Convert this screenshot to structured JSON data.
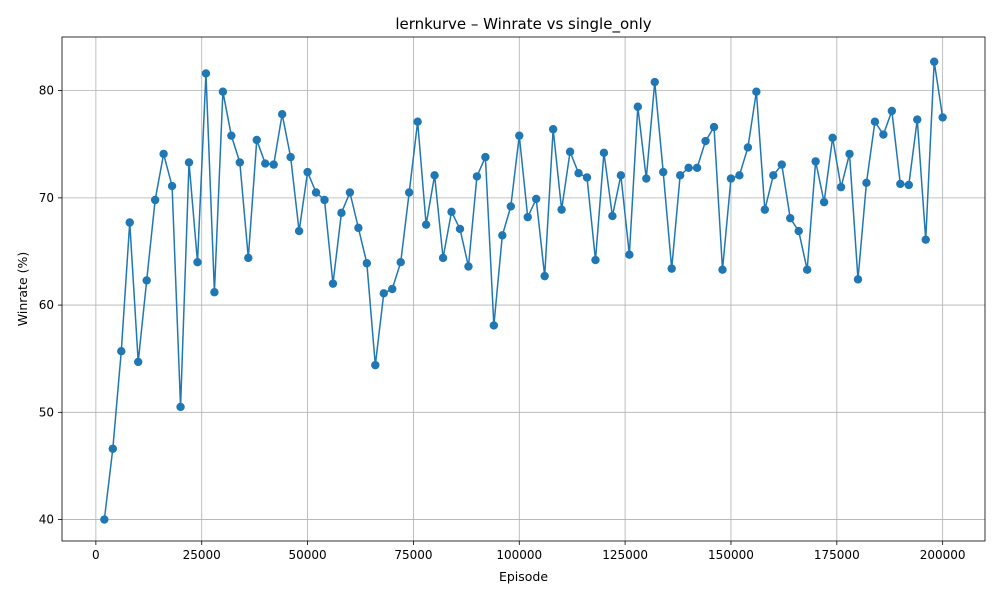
{
  "chart_data": {
    "type": "line",
    "title": "lernkurve – Winrate vs single_only",
    "xlabel": "Episode",
    "ylabel": "Winrate (%)",
    "xlim": [
      -8000,
      210000
    ],
    "ylim": [
      38,
      85
    ],
    "grid": true,
    "x_ticks": [
      0,
      25000,
      50000,
      75000,
      100000,
      125000,
      150000,
      175000,
      200000
    ],
    "x_tick_labels": [
      "0",
      "25000",
      "50000",
      "75000",
      "100000",
      "125000",
      "150000",
      "175000",
      "200000"
    ],
    "y_ticks": [
      40,
      50,
      60,
      70,
      80
    ],
    "y_tick_labels": [
      "40",
      "50",
      "60",
      "70",
      "80"
    ],
    "color": "#1f77b4",
    "x": [
      2000,
      4000,
      6000,
      8000,
      10000,
      12000,
      14000,
      16000,
      18000,
      20000,
      22000,
      24000,
      26000,
      28000,
      30000,
      32000,
      34000,
      36000,
      38000,
      40000,
      42000,
      44000,
      46000,
      48000,
      50000,
      52000,
      54000,
      56000,
      58000,
      60000,
      62000,
      64000,
      66000,
      68000,
      70000,
      72000,
      74000,
      76000,
      78000,
      80000,
      82000,
      84000,
      86000,
      88000,
      90000,
      92000,
      94000,
      96000,
      98000,
      100000,
      102000,
      104000,
      106000,
      108000,
      110000,
      112000,
      114000,
      116000,
      118000,
      120000,
      122000,
      124000,
      126000,
      128000,
      130000,
      132000,
      134000,
      136000,
      138000,
      140000,
      142000,
      144000,
      146000,
      148000,
      150000,
      152000,
      154000,
      156000,
      158000,
      160000,
      162000,
      164000,
      166000,
      168000,
      170000,
      172000,
      174000,
      176000,
      178000,
      180000,
      182000,
      184000,
      186000,
      188000,
      190000,
      192000,
      194000,
      196000,
      198000,
      200000
    ],
    "y": [
      40.0,
      46.6,
      55.7,
      67.7,
      54.7,
      62.3,
      69.8,
      74.1,
      71.1,
      50.5,
      73.3,
      64.0,
      81.6,
      61.2,
      79.9,
      75.8,
      73.3,
      64.4,
      75.4,
      73.2,
      73.1,
      77.8,
      73.8,
      66.9,
      72.4,
      70.5,
      69.8,
      62.0,
      68.6,
      70.5,
      67.2,
      63.9,
      54.4,
      61.1,
      61.5,
      64.0,
      70.5,
      77.1,
      67.5,
      72.1,
      64.4,
      68.7,
      67.1,
      63.6,
      72.0,
      73.8,
      58.1,
      66.5,
      69.2,
      75.8,
      68.2,
      69.9,
      62.7,
      76.4,
      68.9,
      74.3,
      72.3,
      71.9,
      64.2,
      74.2,
      68.3,
      72.1,
      64.7,
      78.5,
      71.8,
      80.8,
      72.4,
      63.4,
      72.1,
      72.8,
      72.8,
      75.3,
      76.6,
      63.3,
      71.8,
      72.1,
      74.7,
      79.9,
      68.9,
      72.1,
      73.1,
      68.1,
      66.9,
      63.3,
      73.4,
      69.6,
      75.6,
      71.0,
      74.1,
      62.4,
      71.4,
      77.1,
      75.9,
      78.1,
      71.3,
      71.2,
      77.3,
      66.1,
      82.7,
      77.5
    ]
  }
}
